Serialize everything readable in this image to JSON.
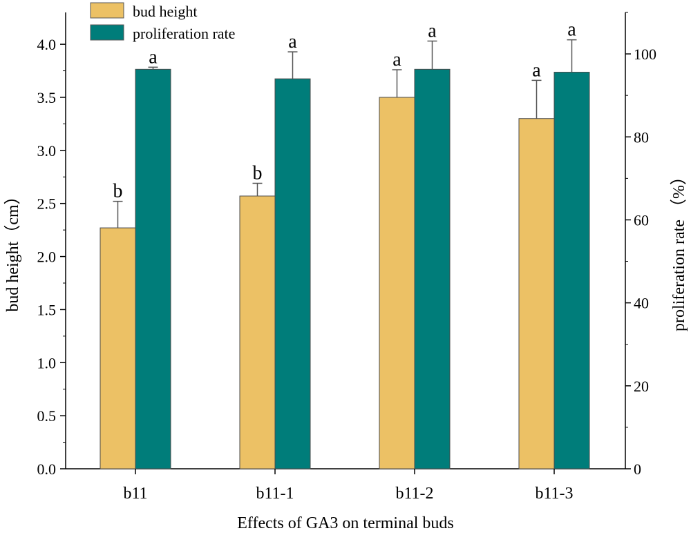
{
  "chart_data": {
    "type": "bar",
    "xlabel": "Effects of GA3 on terminal buds",
    "ylabel_left": "bud height（cm）",
    "ylabel_right": "proliferation rate （%）",
    "categories": [
      "b11",
      "b11-1",
      "b11-2",
      "b11-3"
    ],
    "left_axis": {
      "min": 0,
      "max": 4.3,
      "ticks": [
        "0.0",
        "0.5",
        "1.0",
        "1.5",
        "2.0",
        "2.5",
        "3.0",
        "3.5",
        "4.0"
      ]
    },
    "right_axis": {
      "min": 0,
      "max": 110,
      "ticks": [
        "0",
        "20",
        "40",
        "60",
        "80",
        "100"
      ]
    },
    "series": [
      {
        "name": "bud height",
        "axis": "left",
        "color": "#ecc165",
        "values": [
          2.27,
          2.57,
          3.5,
          3.3
        ],
        "errors": [
          0.25,
          0.12,
          0.26,
          0.36
        ],
        "letters": [
          "b",
          "b",
          "a",
          "a"
        ]
      },
      {
        "name": "proliferation rate",
        "axis": "right",
        "color": "#007d7a",
        "values": [
          96.3,
          94.0,
          96.3,
          95.6
        ],
        "errors": [
          0.5,
          6.5,
          6.8,
          7.8
        ],
        "letters": [
          "a",
          "a",
          "a",
          "a"
        ]
      }
    ],
    "legend_position": "top-left"
  }
}
